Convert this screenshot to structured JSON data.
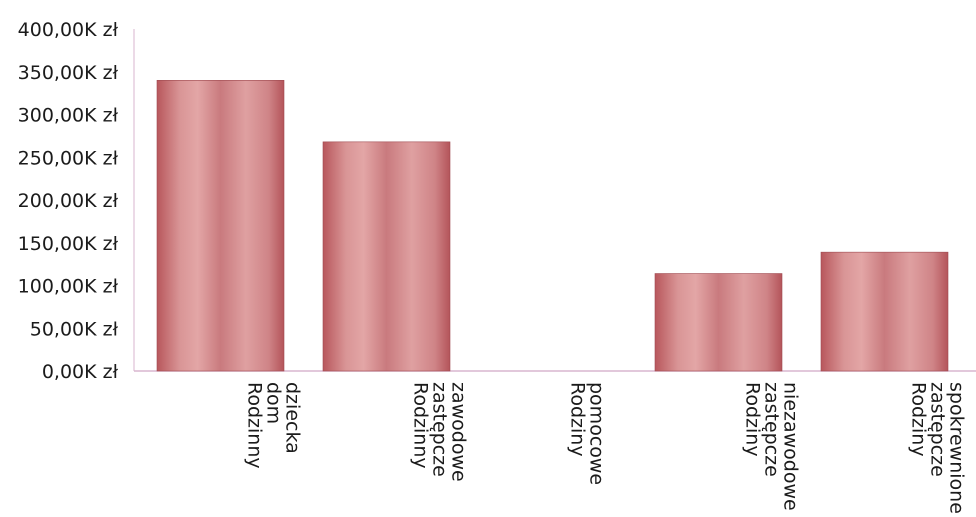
{
  "chart_data": {
    "type": "bar",
    "categories": [
      [
        "Rodzinny",
        "dom",
        "dziecka"
      ],
      [
        "Rodzinny",
        "zastępcze",
        "zawodowe"
      ],
      [
        "Rodziny",
        "pomocowe"
      ],
      [
        "Rodziny",
        "zastępcze",
        "niezawodowe"
      ],
      [
        "Rodziny",
        "zastępcze",
        "spokrewnione"
      ]
    ],
    "values": [
      340000,
      268000,
      0,
      114000,
      139000
    ],
    "ylim": [
      0,
      400000
    ],
    "yticks": [
      0,
      50000,
      100000,
      150000,
      200000,
      250000,
      300000,
      350000,
      400000
    ],
    "ytick_labels": [
      "0,00K zł",
      "50,00K zł",
      "100,00K zł",
      "150,00K zł",
      "200,00K zł",
      "250,00K zł",
      "300,00K zł",
      "350,00K zł",
      "400,00K zł"
    ],
    "grid": false,
    "colors": {
      "bar_edge": "#b8575c",
      "bar_mid": "#e3a6a6",
      "bar_center": "#c97a7e",
      "axis": "#d9b6cf"
    }
  }
}
